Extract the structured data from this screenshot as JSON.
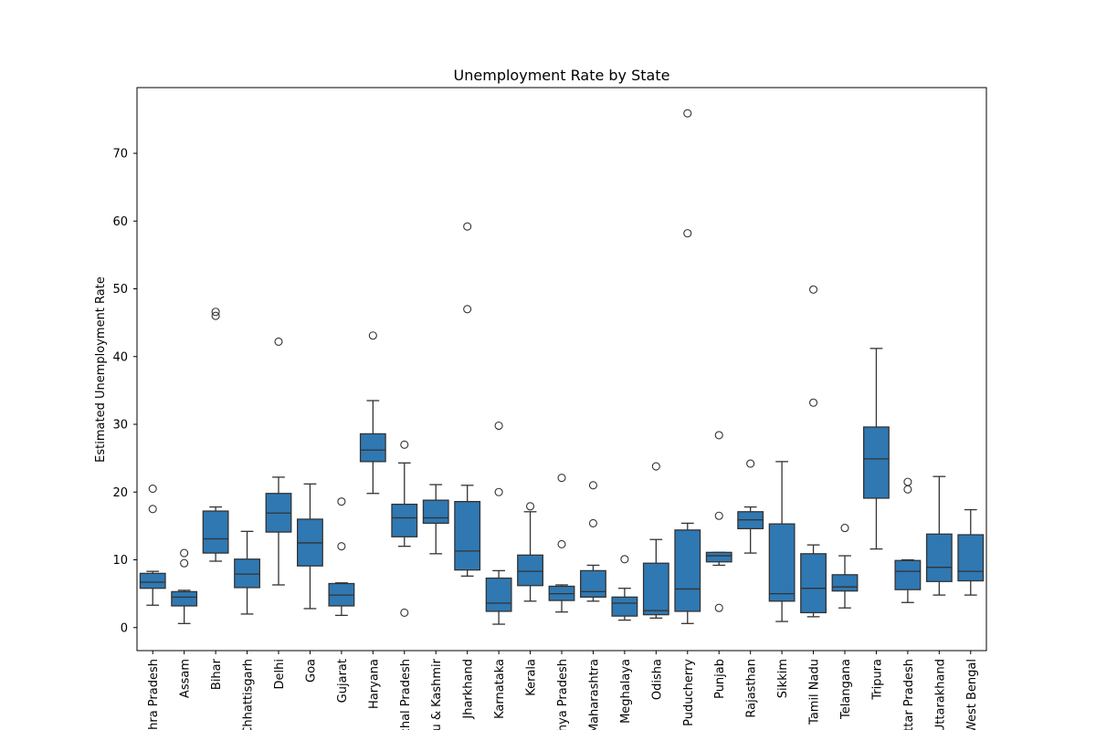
{
  "chart_data": {
    "type": "boxplot",
    "title": "Unemployment Rate by State",
    "xlabel": "",
    "ylabel": "Estimated Unemployment Rate",
    "ylim": [
      -3.4,
      79.7
    ],
    "yticks": [
      0,
      10,
      20,
      30,
      40,
      50,
      60,
      70
    ],
    "grid": false,
    "legend": "none",
    "colors": {
      "box": "#2f78b2",
      "line": "#333333",
      "axis": "#000000",
      "background": "#ffffff"
    },
    "categories": [
      "Andhra Pradesh",
      "Assam",
      "Bihar",
      "Chhattisgarh",
      "Delhi",
      "Goa",
      "Gujarat",
      "Haryana",
      "Himachal Pradesh",
      "Jammu & Kashmir",
      "Jharkhand",
      "Karnataka",
      "Kerala",
      "Madhya Pradesh",
      "Maharashtra",
      "Meghalaya",
      "Odisha",
      "Puducherry",
      "Punjab",
      "Rajasthan",
      "Sikkim",
      "Tamil Nadu",
      "Telangana",
      "Tripura",
      "Uttar Pradesh",
      "Uttarakhand",
      "West Bengal"
    ],
    "boxes": [
      {
        "whislo": 3.3,
        "q1": 5.8,
        "med": 6.7,
        "q3": 8.0,
        "whishi": 8.3,
        "fliers": [
          17.5,
          20.5
        ]
      },
      {
        "whislo": 0.6,
        "q1": 3.2,
        "med": 4.5,
        "q3": 5.3,
        "whishi": 5.5,
        "fliers": [
          9.5,
          11.0
        ]
      },
      {
        "whislo": 9.8,
        "q1": 11.0,
        "med": 13.1,
        "q3": 17.2,
        "whishi": 17.8,
        "fliers": [
          46.0,
          46.6
        ]
      },
      {
        "whislo": 2.0,
        "q1": 5.9,
        "med": 7.9,
        "q3": 10.1,
        "whishi": 14.2,
        "fliers": []
      },
      {
        "whislo": 6.3,
        "q1": 14.1,
        "med": 16.9,
        "q3": 19.8,
        "whishi": 22.2,
        "fliers": [
          42.2
        ]
      },
      {
        "whislo": 2.8,
        "q1": 9.1,
        "med": 12.5,
        "q3": 16.0,
        "whishi": 21.2,
        "fliers": []
      },
      {
        "whislo": 1.8,
        "q1": 3.2,
        "med": 4.8,
        "q3": 6.5,
        "whishi": 6.6,
        "fliers": [
          12.0,
          18.6
        ]
      },
      {
        "whislo": 19.8,
        "q1": 24.5,
        "med": 26.2,
        "q3": 28.6,
        "whishi": 33.5,
        "fliers": [
          43.1
        ]
      },
      {
        "whislo": 12.0,
        "q1": 13.4,
        "med": 16.2,
        "q3": 18.2,
        "whishi": 24.3,
        "fliers": [
          2.2,
          27.0
        ]
      },
      {
        "whislo": 10.9,
        "q1": 15.4,
        "med": 16.2,
        "q3": 18.8,
        "whishi": 21.1,
        "fliers": []
      },
      {
        "whislo": 7.6,
        "q1": 8.5,
        "med": 11.3,
        "q3": 18.6,
        "whishi": 21.0,
        "fliers": [
          47.0,
          59.2
        ]
      },
      {
        "whislo": 0.5,
        "q1": 2.4,
        "med": 3.6,
        "q3": 7.3,
        "whishi": 8.4,
        "fliers": [
          20.0,
          29.8
        ]
      },
      {
        "whislo": 3.9,
        "q1": 6.2,
        "med": 8.3,
        "q3": 10.7,
        "whishi": 17.1,
        "fliers": [
          17.9
        ]
      },
      {
        "whislo": 2.3,
        "q1": 4.0,
        "med": 5.0,
        "q3": 6.1,
        "whishi": 6.3,
        "fliers": [
          12.3,
          22.1
        ]
      },
      {
        "whislo": 3.9,
        "q1": 4.5,
        "med": 5.3,
        "q3": 8.4,
        "whishi": 9.2,
        "fliers": [
          15.4,
          21.0
        ]
      },
      {
        "whislo": 1.1,
        "q1": 1.7,
        "med": 3.6,
        "q3": 4.5,
        "whishi": 5.8,
        "fliers": [
          10.1
        ]
      },
      {
        "whislo": 1.4,
        "q1": 1.9,
        "med": 2.5,
        "q3": 9.5,
        "whishi": 13.0,
        "fliers": [
          23.8
        ]
      },
      {
        "whislo": 0.6,
        "q1": 2.4,
        "med": 5.7,
        "q3": 14.4,
        "whishi": 15.4,
        "fliers": [
          58.2,
          75.9
        ]
      },
      {
        "whislo": 9.2,
        "q1": 9.7,
        "med": 10.6,
        "q3": 11.1,
        "whishi": 11.1,
        "fliers": [
          2.9,
          16.5,
          28.4
        ]
      },
      {
        "whislo": 11.0,
        "q1": 14.6,
        "med": 15.9,
        "q3": 17.1,
        "whishi": 17.8,
        "fliers": [
          24.2
        ]
      },
      {
        "whislo": 0.9,
        "q1": 3.9,
        "med": 5.0,
        "q3": 15.3,
        "whishi": 24.5,
        "fliers": []
      },
      {
        "whislo": 1.6,
        "q1": 2.2,
        "med": 5.8,
        "q3": 10.9,
        "whishi": 12.2,
        "fliers": [
          33.2,
          49.9
        ]
      },
      {
        "whislo": 2.9,
        "q1": 5.4,
        "med": 6.0,
        "q3": 7.8,
        "whishi": 10.6,
        "fliers": [
          14.7
        ]
      },
      {
        "whislo": 11.6,
        "q1": 19.1,
        "med": 24.9,
        "q3": 29.6,
        "whishi": 41.2,
        "fliers": []
      },
      {
        "whislo": 3.7,
        "q1": 5.6,
        "med": 8.3,
        "q3": 9.9,
        "whishi": 10.0,
        "fliers": [
          20.4,
          21.5
        ]
      },
      {
        "whislo": 4.8,
        "q1": 6.8,
        "med": 8.9,
        "q3": 13.8,
        "whishi": 22.3,
        "fliers": []
      },
      {
        "whislo": 4.8,
        "q1": 6.9,
        "med": 8.3,
        "q3": 13.7,
        "whishi": 17.4,
        "fliers": []
      }
    ]
  }
}
